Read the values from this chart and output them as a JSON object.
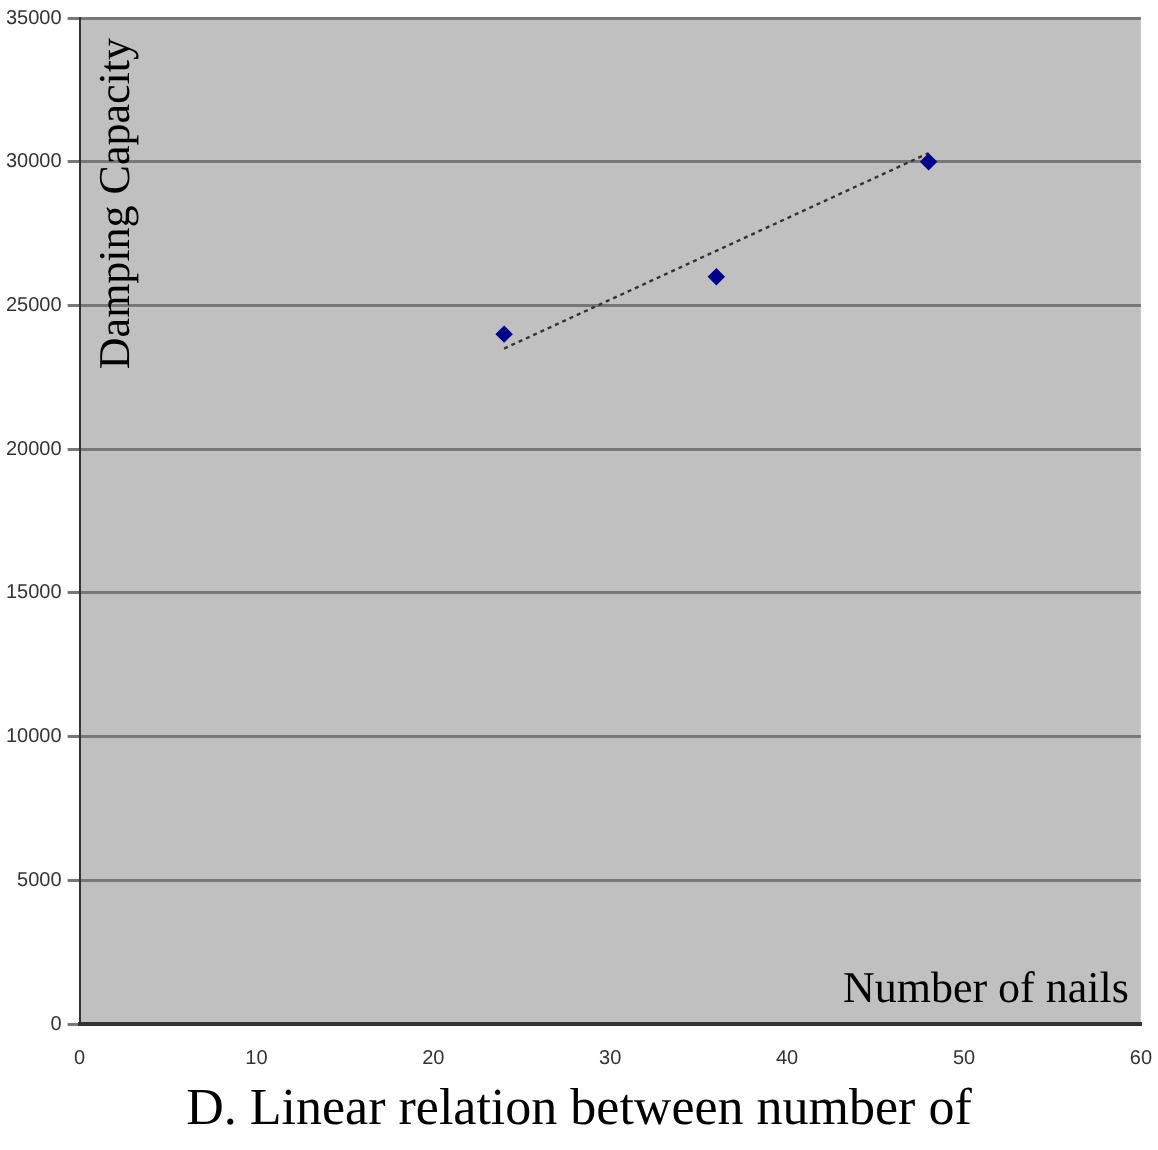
{
  "chart_data": {
    "type": "scatter",
    "xlabel": "Number of nails",
    "ylabel": "Damping Capacity",
    "series": [
      {
        "type": "scatter",
        "x": [
          24,
          36,
          48
        ],
        "values": [
          24000,
          26000,
          30000
        ],
        "color": "#00008b",
        "marker": "diamond"
      },
      {
        "type": "line",
        "x": [
          24,
          48
        ],
        "values": [
          23500,
          30300
        ],
        "color": "#333333",
        "line_style": "dotted",
        "marker": "none"
      }
    ],
    "xlim": [
      0,
      60
    ],
    "xticks": [
      0,
      10,
      20,
      30,
      40,
      50,
      60
    ],
    "ylim": [
      0,
      35000
    ],
    "yticks": [
      0,
      5000,
      10000,
      15000,
      20000,
      25000,
      30000,
      35000
    ],
    "grid": "y",
    "legend": false,
    "annotations": [
      "D. Linear relation between number of"
    ]
  }
}
